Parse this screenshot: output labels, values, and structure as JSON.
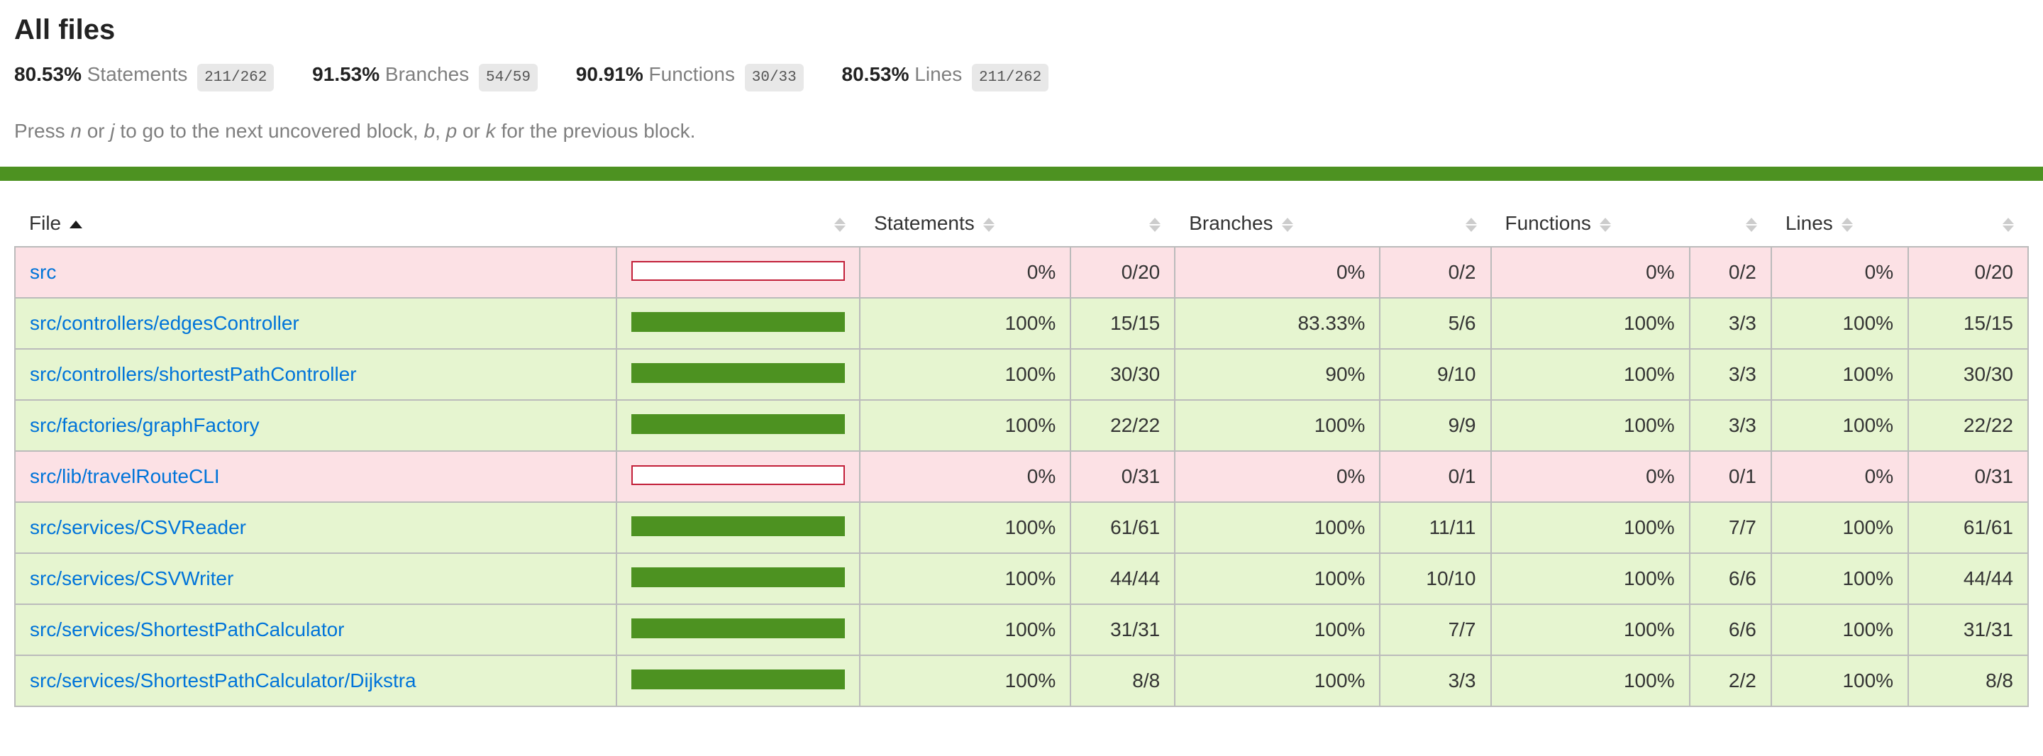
{
  "header": {
    "title": "All files"
  },
  "summary": {
    "metrics": [
      {
        "pct": "80.53%",
        "label": "Statements",
        "fraction": "211/262"
      },
      {
        "pct": "91.53%",
        "label": "Branches",
        "fraction": "54/59"
      },
      {
        "pct": "90.91%",
        "label": "Functions",
        "fraction": "30/33"
      },
      {
        "pct": "80.53%",
        "label": "Lines",
        "fraction": "211/262"
      }
    ]
  },
  "hint": {
    "parts": [
      {
        "text": "Press "
      },
      {
        "text": "n",
        "italic": true
      },
      {
        "text": " or "
      },
      {
        "text": "j",
        "italic": true
      },
      {
        "text": " to go to the next uncovered block, "
      },
      {
        "text": "b",
        "italic": true
      },
      {
        "text": ", "
      },
      {
        "text": "p",
        "italic": true
      },
      {
        "text": " or "
      },
      {
        "text": "k",
        "italic": true
      },
      {
        "text": " for the previous block."
      }
    ]
  },
  "status_bar": {
    "level": "high",
    "color": "#4D9221"
  },
  "table": {
    "columns": [
      {
        "label": "File",
        "sorted": "asc"
      },
      {
        "label": ""
      },
      {
        "label": "Statements"
      },
      {
        "label": ""
      },
      {
        "label": "Branches"
      },
      {
        "label": ""
      },
      {
        "label": "Functions"
      },
      {
        "label": ""
      },
      {
        "label": "Lines"
      },
      {
        "label": ""
      }
    ],
    "rows": [
      {
        "file": "src",
        "level": "low",
        "bar_fill_pct": 0,
        "statements_pct": "0%",
        "statements": "0/20",
        "branches_pct": "0%",
        "branches": "0/2",
        "functions_pct": "0%",
        "functions": "0/2",
        "lines_pct": "0%",
        "lines": "0/20"
      },
      {
        "file": "src/controllers/edgesController",
        "level": "high",
        "bar_fill_pct": 100,
        "statements_pct": "100%",
        "statements": "15/15",
        "branches_pct": "83.33%",
        "branches": "5/6",
        "functions_pct": "100%",
        "functions": "3/3",
        "lines_pct": "100%",
        "lines": "15/15"
      },
      {
        "file": "src/controllers/shortestPathController",
        "level": "high",
        "bar_fill_pct": 100,
        "statements_pct": "100%",
        "statements": "30/30",
        "branches_pct": "90%",
        "branches": "9/10",
        "functions_pct": "100%",
        "functions": "3/3",
        "lines_pct": "100%",
        "lines": "30/30"
      },
      {
        "file": "src/factories/graphFactory",
        "level": "high",
        "bar_fill_pct": 100,
        "statements_pct": "100%",
        "statements": "22/22",
        "branches_pct": "100%",
        "branches": "9/9",
        "functions_pct": "100%",
        "functions": "3/3",
        "lines_pct": "100%",
        "lines": "22/22"
      },
      {
        "file": "src/lib/travelRouteCLI",
        "level": "low",
        "bar_fill_pct": 0,
        "statements_pct": "0%",
        "statements": "0/31",
        "branches_pct": "0%",
        "branches": "0/1",
        "functions_pct": "0%",
        "functions": "0/1",
        "lines_pct": "0%",
        "lines": "0/31"
      },
      {
        "file": "src/services/CSVReader",
        "level": "high",
        "bar_fill_pct": 100,
        "statements_pct": "100%",
        "statements": "61/61",
        "branches_pct": "100%",
        "branches": "11/11",
        "functions_pct": "100%",
        "functions": "7/7",
        "lines_pct": "100%",
        "lines": "61/61"
      },
      {
        "file": "src/services/CSVWriter",
        "level": "high",
        "bar_fill_pct": 100,
        "statements_pct": "100%",
        "statements": "44/44",
        "branches_pct": "100%",
        "branches": "10/10",
        "functions_pct": "100%",
        "functions": "6/6",
        "lines_pct": "100%",
        "lines": "44/44"
      },
      {
        "file": "src/services/ShortestPathCalculator",
        "level": "high",
        "bar_fill_pct": 100,
        "statements_pct": "100%",
        "statements": "31/31",
        "branches_pct": "100%",
        "branches": "7/7",
        "functions_pct": "100%",
        "functions": "6/6",
        "lines_pct": "100%",
        "lines": "31/31"
      },
      {
        "file": "src/services/ShortestPathCalculator/Dijkstra",
        "level": "high",
        "bar_fill_pct": 100,
        "statements_pct": "100%",
        "statements": "8/8",
        "branches_pct": "100%",
        "branches": "3/3",
        "functions_pct": "100%",
        "functions": "2/2",
        "lines_pct": "100%",
        "lines": "8/8"
      }
    ]
  },
  "colors": {
    "status_green": "#4D9221",
    "high_bg": "#E6F5D0",
    "low_bg": "#FCE1E5",
    "low_accent": "#C21F39",
    "link_blue": "#0074D9",
    "fraction_badge_bg": "#E8E8E8",
    "table_border": "#bbbbbb",
    "quiet_text": "#7f7f7f"
  }
}
